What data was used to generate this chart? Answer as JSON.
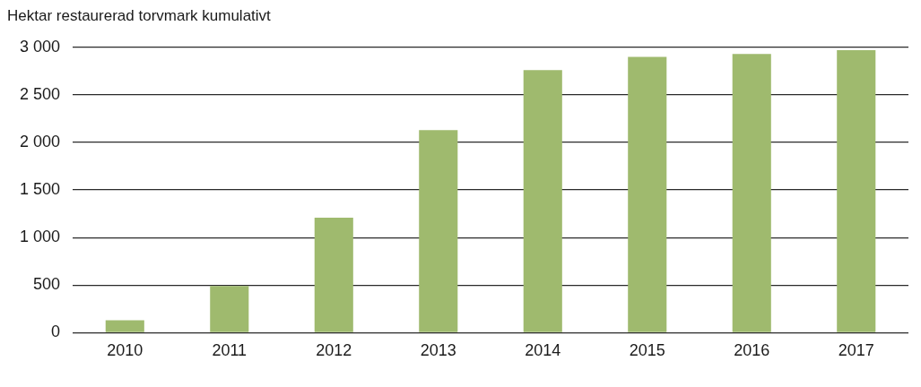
{
  "chart_data": {
    "type": "bar",
    "ylabel": "Hektar restaurerad torvmark kumulativt",
    "categories": [
      "2010",
      "2011",
      "2012",
      "2013",
      "2014",
      "2015",
      "2016",
      "2017"
    ],
    "values": [
      130,
      490,
      1210,
      2130,
      2760,
      2900,
      2930,
      2970
    ],
    "color": "#9fba6e",
    "ylim": [
      0,
      3000
    ],
    "yticks": [
      {
        "value": 0,
        "label": "0"
      },
      {
        "value": 500,
        "label": "500"
      },
      {
        "value": 1000,
        "label": "1 000"
      },
      {
        "value": 1500,
        "label": "1 500"
      },
      {
        "value": 2000,
        "label": "2 000"
      },
      {
        "value": 2500,
        "label": "2 500"
      },
      {
        "value": 3000,
        "label": "3 000"
      }
    ],
    "grid": "y",
    "legend": false
  }
}
